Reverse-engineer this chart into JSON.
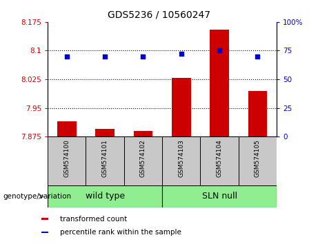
{
  "title": "GDS5236 / 10560247",
  "samples": [
    "GSM574100",
    "GSM574101",
    "GSM574102",
    "GSM574103",
    "GSM574104",
    "GSM574105"
  ],
  "red_values": [
    7.915,
    7.895,
    7.89,
    8.028,
    8.155,
    7.995
  ],
  "blue_values": [
    70,
    70,
    70,
    72,
    75,
    70
  ],
  "ylim_left": [
    7.875,
    8.175
  ],
  "ylim_right": [
    0,
    100
  ],
  "yticks_left": [
    7.875,
    7.95,
    8.025,
    8.1,
    8.175
  ],
  "yticks_right": [
    0,
    25,
    50,
    75,
    100
  ],
  "ytick_labels_left": [
    "7.875",
    "7.95",
    "8.025",
    "8.1",
    "8.175"
  ],
  "ytick_labels_right": [
    "0",
    "25",
    "50",
    "75",
    "100%"
  ],
  "hlines": [
    7.95,
    8.025,
    8.1
  ],
  "groups": [
    {
      "label": "wild type",
      "start": 0,
      "end": 3
    },
    {
      "label": "SLN null",
      "start": 3,
      "end": 6
    }
  ],
  "bar_color": "#cc0000",
  "dot_color": "#0000cc",
  "dot_size": 18,
  "bar_width": 0.5,
  "legend_items": [
    {
      "color": "#cc0000",
      "label": "transformed count"
    },
    {
      "color": "#0000cc",
      "label": "percentile rank within the sample"
    }
  ],
  "genotype_label": "genotype/variation",
  "sample_box_color": "#c8c8c8",
  "group_box_color": "#90ee90",
  "title_fontsize": 10,
  "tick_fontsize": 7.5,
  "legend_fontsize": 7.5,
  "sample_fontsize": 6.5,
  "group_fontsize": 9
}
